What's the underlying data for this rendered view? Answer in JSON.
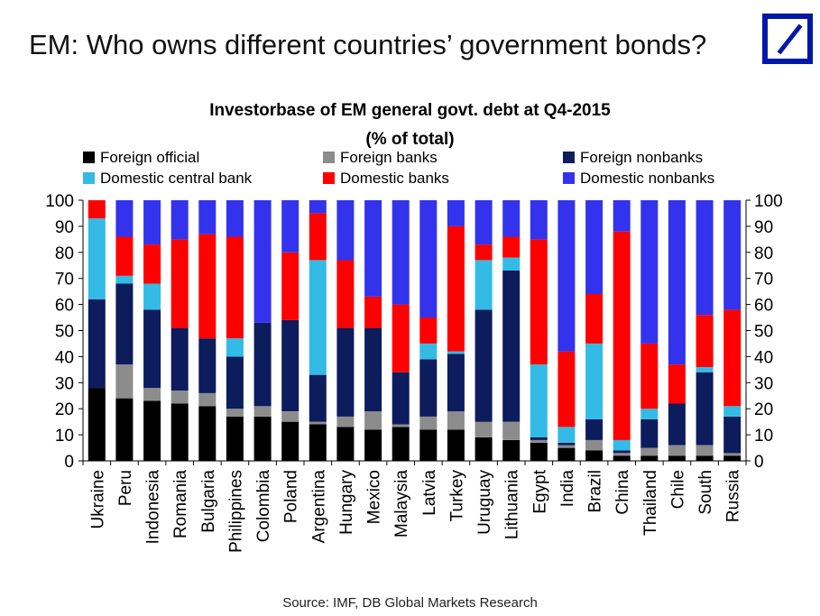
{
  "page": {
    "title": "EM: Who owns different countries’ government bonds?",
    "source": "Source: IMF, DB Global Markets Research",
    "logo_color": "#0018a8"
  },
  "chart_data": {
    "type": "bar",
    "stacked": true,
    "title": "Investorbase of EM general govt. debt at Q4-2015",
    "subtitle": "(% of total)",
    "categories": [
      "Ukraine",
      "Peru",
      "Indonesia",
      "Romania",
      "Bulgaria",
      "Philippines",
      "Colombia",
      "Poland",
      "Argentina",
      "Hungary",
      "Mexico",
      "Malaysia",
      "Latvia",
      "Turkey",
      "Uruguay",
      "Lithuania",
      "Egypt",
      "India",
      "Brazil",
      "China",
      "Thailand",
      "Chile",
      "South",
      "Russia"
    ],
    "series": [
      {
        "name": "Foreign official",
        "color": "#000000",
        "values": [
          28,
          24,
          23,
          22,
          21,
          17,
          17,
          15,
          14,
          13,
          12,
          13,
          12,
          12,
          9,
          8,
          7,
          5,
          4,
          2,
          2,
          2,
          2,
          2
        ]
      },
      {
        "name": "Foreign banks",
        "color": "#8c8c8c",
        "values": [
          0,
          13,
          5,
          5,
          5,
          3,
          4,
          4,
          1,
          4,
          7,
          1,
          5,
          7,
          6,
          7,
          1,
          1,
          4,
          1,
          3,
          4,
          4,
          1
        ]
      },
      {
        "name": "Foreign nonbanks",
        "color": "#0c1c5c",
        "values": [
          34,
          31,
          30,
          24,
          21,
          20,
          32,
          35,
          18,
          34,
          32,
          20,
          22,
          22,
          43,
          58,
          1,
          1,
          8,
          1,
          11,
          16,
          28,
          14
        ]
      },
      {
        "name": "Domestic central bank",
        "color": "#33bbe6",
        "values": [
          31,
          3,
          10,
          0,
          0,
          7,
          0,
          0,
          44,
          0,
          0,
          0,
          6,
          1,
          19,
          5,
          28,
          6,
          29,
          4,
          4,
          0,
          2,
          4
        ]
      },
      {
        "name": "Domestic banks",
        "color": "#ff0000",
        "values": [
          7,
          15,
          15,
          34,
          40,
          39,
          0,
          26,
          18,
          26,
          12,
          26,
          10,
          48,
          6,
          8,
          48,
          29,
          19,
          80,
          25,
          15,
          20,
          37
        ]
      },
      {
        "name": "Domestic nonbanks",
        "color": "#3333ee",
        "values": [
          0,
          14,
          17,
          15,
          13,
          14,
          47,
          20,
          5,
          23,
          37,
          40,
          45,
          10,
          17,
          14,
          15,
          58,
          36,
          12,
          55,
          63,
          44,
          42
        ]
      }
    ],
    "ylim": [
      0,
      100
    ],
    "yticks": [
      0,
      10,
      20,
      30,
      40,
      50,
      60,
      70,
      80,
      90,
      100
    ],
    "grid": false,
    "legend_position": "top",
    "secondary_y_axis": true
  }
}
